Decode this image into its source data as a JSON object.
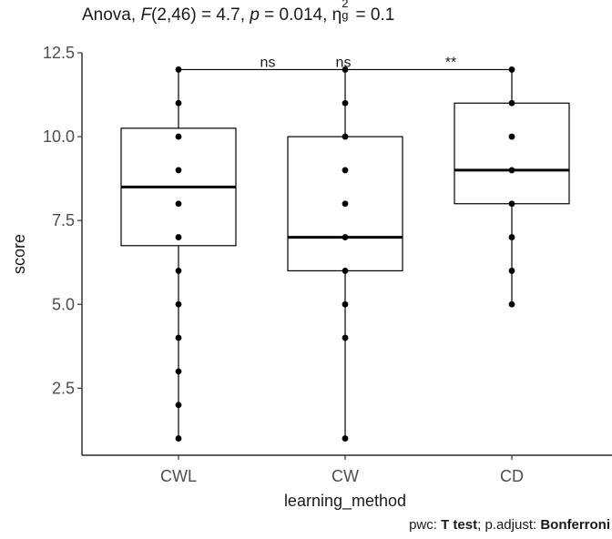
{
  "chart_data": {
    "type": "box",
    "title": {
      "prefix": "Anova, ",
      "stat_symbol": "F",
      "stat_args": "(2,46) = 4.7, ",
      "p_symbol": "p",
      "p_value": " = 0.014, ",
      "effect_symbol": "η",
      "effect_sub": "g",
      "effect_sup": "2",
      "effect_value": " = 0.1"
    },
    "xlabel": "learning_method",
    "ylabel": "score",
    "ylim": [
      0.5,
      12.5
    ],
    "yticks": [
      2.5,
      5.0,
      7.5,
      10.0,
      12.5
    ],
    "ytick_labels": [
      "2.5",
      "5.0",
      "7.5",
      "10.0",
      "12.5"
    ],
    "categories": [
      "CWL",
      "CW",
      "CD"
    ],
    "boxes": [
      {
        "category": "CWL",
        "whisker_low": 1,
        "q1": 6.75,
        "median": 8.5,
        "q3": 10.25,
        "whisker_high": 12
      },
      {
        "category": "CW",
        "whisker_low": 1,
        "q1": 6,
        "median": 7,
        "q3": 10,
        "whisker_high": 12
      },
      {
        "category": "CD",
        "whisker_low": 5,
        "q1": 8,
        "median": 9,
        "q3": 11,
        "whisker_high": 12
      }
    ],
    "points": [
      {
        "category": "CWL",
        "values": [
          1,
          2,
          3,
          4,
          5,
          6,
          7,
          8,
          9,
          10,
          11,
          12
        ]
      },
      {
        "category": "CW",
        "values": [
          1,
          4,
          5,
          6,
          7,
          8,
          9,
          10,
          11,
          12
        ]
      },
      {
        "category": "CD",
        "values": [
          5,
          6,
          7,
          8,
          9,
          10,
          11,
          12
        ]
      }
    ],
    "comparisons": [
      {
        "label": "ns"
      },
      {
        "label": "ns"
      },
      {
        "label": "**"
      }
    ],
    "bracket_y": 12
  },
  "caption": {
    "prefix": "pwc: ",
    "test": "T test",
    "middle": "; p.adjust: ",
    "method": "Bonferroni"
  }
}
